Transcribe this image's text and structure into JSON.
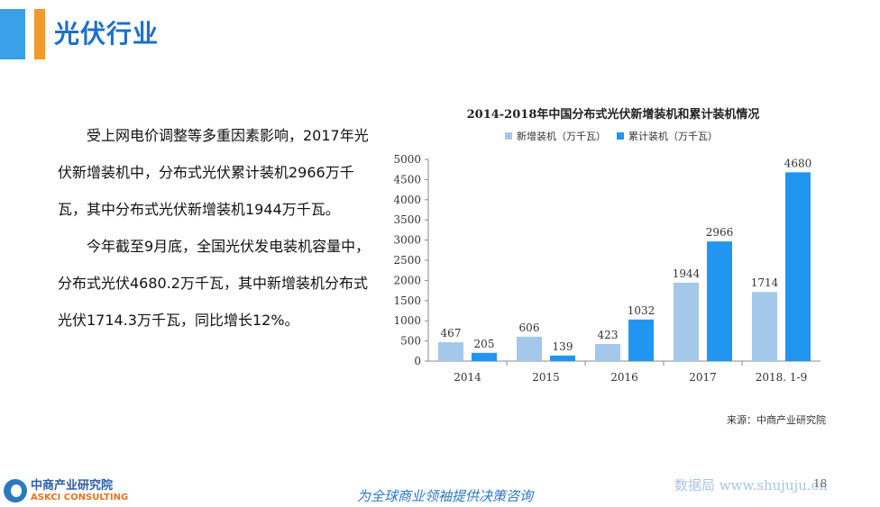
{
  "header": {
    "title": "光伏行业"
  },
  "text": {
    "para1": "受上网电价调整等多重因素影响，2017年光伏新增装机中，分布式光伏累计装机2966万千瓦，其中分布式光伏新增装机1944万千瓦。",
    "para2": "今年截至9月底，全国光伏发电装机容量中，分布式光伏4680.2万千瓦，其中新增装机分布式光伏1714.3万千瓦，同比增长12%。"
  },
  "chart_data": {
    "type": "bar",
    "title": "2014-2018年中国分布式光伏新增装机和累计装机情况",
    "categories": [
      "2014",
      "2015",
      "2016",
      "2017",
      "2018. 1-9"
    ],
    "series": [
      {
        "name": "新增装机（万千瓦）",
        "values": [
          467,
          606,
          423,
          1944,
          1714
        ],
        "color": "#a4c8ea"
      },
      {
        "name": "累计装机（万千瓦）",
        "values": [
          205,
          139,
          1032,
          2966,
          4680
        ],
        "color": "#2196f0"
      }
    ],
    "ylim": [
      0,
      5000
    ],
    "yticks": [
      0,
      500,
      1000,
      1500,
      2000,
      2500,
      3000,
      3500,
      4000,
      4500,
      5000
    ],
    "legend": "top",
    "grid": false
  },
  "footer": {
    "source": "来源：中商产业研究院",
    "logo_cn": "中商产业研究院",
    "logo_en": "ASKCI CONSULTING",
    "slogan": "为全球商业领袖提供决策咨询",
    "page_number": "18",
    "watermark": "数据局 www.shujuju.cn"
  }
}
